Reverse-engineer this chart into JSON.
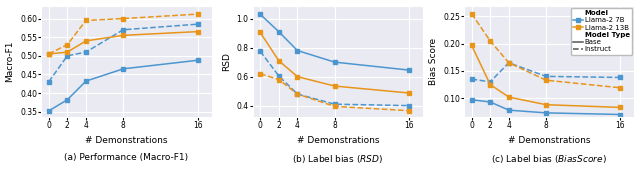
{
  "x": [
    0,
    2,
    4,
    8,
    16
  ],
  "macro_f1": {
    "llama2_7b_base": [
      0.352,
      0.382,
      0.432,
      0.465,
      0.488
    ],
    "llama2_7b_instruct": [
      0.43,
      0.5,
      0.51,
      0.57,
      0.585
    ],
    "llama2_13b_base": [
      0.505,
      0.51,
      0.54,
      0.555,
      0.565
    ],
    "llama2_13b_instruct": [
      0.505,
      0.53,
      0.595,
      0.6,
      0.612
    ]
  },
  "rsd": {
    "llama2_7b_base": [
      1.03,
      0.91,
      0.78,
      0.7,
      0.645
    ],
    "llama2_7b_instruct": [
      0.775,
      0.605,
      0.48,
      0.41,
      0.4
    ],
    "llama2_13b_base": [
      0.905,
      0.71,
      0.6,
      0.535,
      0.487
    ],
    "llama2_13b_instruct": [
      0.62,
      0.58,
      0.48,
      0.395,
      0.365
    ]
  },
  "bias_score": {
    "llama2_7b_base": [
      0.097,
      0.093,
      0.078,
      0.073,
      0.07
    ],
    "llama2_7b_instruct": [
      0.135,
      0.13,
      0.165,
      0.14,
      0.138
    ],
    "llama2_13b_base": [
      0.197,
      0.125,
      0.102,
      0.088,
      0.083
    ],
    "llama2_13b_instruct": [
      0.255,
      0.205,
      0.165,
      0.133,
      0.119
    ]
  },
  "color_7b": "#4c96d0",
  "color_13b": "#e8951a",
  "xlim": [
    -0.8,
    17.5
  ],
  "xticks": [
    0,
    2,
    4,
    8,
    16
  ],
  "ylim_f1": [
    0.335,
    0.635
  ],
  "yticks_f1": [
    0.35,
    0.4,
    0.45,
    0.5,
    0.55,
    0.6
  ],
  "ylim_rsd": [
    0.32,
    1.09
  ],
  "yticks_rsd": [
    0.4,
    0.6,
    0.8,
    1.0
  ],
  "ylim_bs": [
    0.065,
    0.27
  ],
  "yticks_bs": [
    0.1,
    0.15,
    0.2,
    0.25
  ],
  "xlabel": "# Demonstrations",
  "ylabel_f1": "Macro-F1",
  "ylabel_rsd": "RSD",
  "ylabel_bs": "Bias Score",
  "legend_title_model": "Model",
  "legend_llama7b": "Llama-2 7B",
  "legend_llama13b": "Llama-2 13B",
  "legend_title_type": "Model Type",
  "legend_base": "Base",
  "legend_instruct": "Instruct",
  "bg_color": "#eaeaf2",
  "grid_color": "#ffffff",
  "spine_color": "#ffffff"
}
